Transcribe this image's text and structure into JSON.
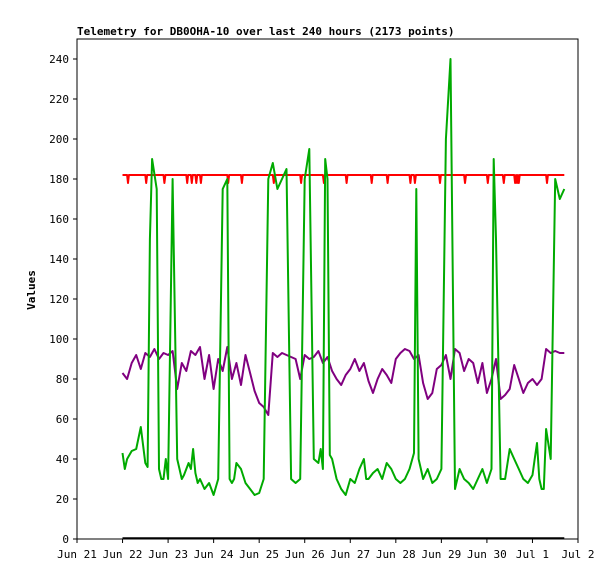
{
  "chart_data": {
    "type": "line",
    "title": "Telemetry for DB0OHA-10 over last 240 hours (2173 points)",
    "xlabel": "",
    "ylabel": "Values",
    "ylim": [
      0,
      250
    ],
    "yticks": [
      0,
      20,
      40,
      60,
      80,
      100,
      120,
      140,
      160,
      180,
      200,
      220,
      240
    ],
    "xlim": [
      0,
      11
    ],
    "xticks": [
      {
        "x": 0,
        "label": "Jun 21"
      },
      {
        "x": 1,
        "label": "Jun 22"
      },
      {
        "x": 2,
        "label": "Jun 23"
      },
      {
        "x": 3,
        "label": "Jun 24"
      },
      {
        "x": 4,
        "label": "Jun 25"
      },
      {
        "x": 5,
        "label": "Jun 26"
      },
      {
        "x": 6,
        "label": "Jun 27"
      },
      {
        "x": 7,
        "label": "Jun 28"
      },
      {
        "x": 8,
        "label": "Jun 29"
      },
      {
        "x": 9,
        "label": "Jun 30"
      },
      {
        "x": 10,
        "label": "Jul 1"
      },
      {
        "x": 11,
        "label": "Jul 2"
      }
    ],
    "grid": false,
    "series": [
      {
        "color": "#ff0000",
        "x": [
          1.0,
          1.1,
          1.12,
          1.14,
          1.5,
          1.52,
          1.54,
          1.9,
          1.92,
          1.94,
          2.4,
          2.42,
          2.44,
          2.5,
          2.52,
          2.54,
          2.6,
          2.62,
          2.64,
          2.7,
          2.72,
          2.74,
          3.3,
          3.32,
          3.34,
          3.6,
          3.62,
          3.64,
          4.3,
          4.32,
          4.34,
          4.9,
          4.92,
          4.94,
          5.4,
          5.42,
          5.44,
          5.9,
          5.92,
          5.94,
          6.45,
          6.47,
          6.49,
          6.8,
          6.82,
          6.84,
          7.3,
          7.32,
          7.34,
          7.4,
          7.42,
          7.44,
          7.95,
          7.97,
          7.99,
          8.5,
          8.52,
          8.54,
          9.0,
          9.02,
          9.04,
          9.35,
          9.37,
          9.39,
          9.6,
          9.62,
          9.64,
          9.66,
          9.68,
          9.7,
          9.72,
          10.3,
          10.32,
          10.34,
          10.7
        ],
        "y": [
          182,
          182,
          178,
          182,
          182,
          178,
          182,
          182,
          178,
          182,
          182,
          178,
          182,
          182,
          178,
          182,
          182,
          178,
          182,
          182,
          178,
          182,
          182,
          178,
          182,
          182,
          178,
          182,
          182,
          178,
          182,
          182,
          178,
          182,
          182,
          178,
          182,
          182,
          178,
          182,
          182,
          178,
          182,
          182,
          178,
          182,
          182,
          178,
          182,
          182,
          178,
          182,
          182,
          178,
          182,
          182,
          178,
          182,
          182,
          178,
          182,
          182,
          178,
          182,
          182,
          178,
          182,
          178,
          182,
          178,
          182,
          182,
          178,
          182,
          182
        ]
      },
      {
        "color": "#800080",
        "x": [
          1.0,
          1.1,
          1.2,
          1.3,
          1.4,
          1.5,
          1.6,
          1.7,
          1.8,
          1.9,
          2.0,
          2.1,
          2.2,
          2.3,
          2.4,
          2.5,
          2.6,
          2.7,
          2.8,
          2.9,
          3.0,
          3.1,
          3.2,
          3.3,
          3.4,
          3.5,
          3.6,
          3.7,
          3.8,
          3.9,
          4.0,
          4.1,
          4.2,
          4.3,
          4.4,
          4.5,
          4.6,
          4.7,
          4.8,
          4.9,
          5.0,
          5.1,
          5.2,
          5.3,
          5.4,
          5.5,
          5.6,
          5.7,
          5.8,
          5.9,
          6.0,
          6.1,
          6.2,
          6.3,
          6.4,
          6.5,
          6.6,
          6.7,
          6.8,
          6.9,
          7.0,
          7.1,
          7.2,
          7.3,
          7.4,
          7.5,
          7.6,
          7.7,
          7.8,
          7.9,
          8.0,
          8.1,
          8.2,
          8.3,
          8.4,
          8.5,
          8.6,
          8.7,
          8.8,
          8.9,
          9.0,
          9.1,
          9.2,
          9.3,
          9.4,
          9.5,
          9.6,
          9.7,
          9.8,
          9.9,
          10.0,
          10.1,
          10.2,
          10.3,
          10.4,
          10.5,
          10.6,
          10.7
        ],
        "y": [
          83,
          80,
          88,
          92,
          85,
          93,
          91,
          95,
          90,
          93,
          92,
          94,
          75,
          88,
          84,
          94,
          92,
          96,
          80,
          92,
          75,
          90,
          84,
          96,
          80,
          88,
          77,
          92,
          83,
          74,
          68,
          66,
          62,
          93,
          91,
          93,
          92,
          91,
          90,
          80,
          92,
          90,
          91,
          94,
          88,
          91,
          84,
          80,
          77,
          82,
          85,
          90,
          84,
          88,
          79,
          73,
          80,
          85,
          82,
          78,
          90,
          93,
          95,
          94,
          90,
          92,
          78,
          70,
          73,
          85,
          87,
          92,
          80,
          95,
          93,
          84,
          90,
          88,
          78,
          88,
          73,
          80,
          90,
          70,
          72,
          75,
          87,
          80,
          73,
          78,
          80,
          77,
          80,
          95,
          93,
          94,
          93,
          93
        ]
      },
      {
        "color": "#00aa00",
        "x": [
          1.0,
          1.05,
          1.1,
          1.2,
          1.3,
          1.4,
          1.5,
          1.55,
          1.6,
          1.65,
          1.75,
          1.8,
          1.85,
          1.9,
          1.95,
          2.0,
          2.1,
          2.2,
          2.3,
          2.35,
          2.45,
          2.5,
          2.55,
          2.6,
          2.65,
          2.7,
          2.8,
          2.9,
          3.0,
          3.1,
          3.2,
          3.3,
          3.35,
          3.4,
          3.45,
          3.5,
          3.6,
          3.7,
          3.8,
          3.9,
          4.0,
          4.1,
          4.2,
          4.3,
          4.4,
          4.5,
          4.6,
          4.7,
          4.8,
          4.9,
          5.0,
          5.1,
          5.2,
          5.3,
          5.35,
          5.4,
          5.45,
          5.5,
          5.55,
          5.6,
          5.7,
          5.8,
          5.9,
          6.0,
          6.1,
          6.2,
          6.3,
          6.35,
          6.4,
          6.5,
          6.6,
          6.7,
          6.8,
          6.9,
          7.0,
          7.1,
          7.2,
          7.3,
          7.4,
          7.45,
          7.5,
          7.55,
          7.6,
          7.7,
          7.8,
          7.9,
          8.0,
          8.1,
          8.2,
          8.3,
          8.35,
          8.4,
          8.5,
          8.6,
          8.7,
          8.8,
          8.9,
          9.0,
          9.1,
          9.15,
          9.2,
          9.3,
          9.4,
          9.5,
          9.6,
          9.7,
          9.8,
          9.9,
          10.0,
          10.05,
          10.1,
          10.15,
          10.2,
          10.25,
          10.3,
          10.4,
          10.5,
          10.6,
          10.7
        ],
        "y": [
          43,
          35,
          40,
          44,
          45,
          56,
          38,
          36,
          150,
          190,
          175,
          35,
          30,
          30,
          40,
          30,
          180,
          40,
          30,
          32,
          38,
          35,
          45,
          33,
          28,
          30,
          25,
          28,
          22,
          30,
          175,
          180,
          30,
          28,
          30,
          38,
          35,
          28,
          25,
          22,
          23,
          30,
          180,
          188,
          175,
          180,
          185,
          30,
          28,
          30,
          180,
          195,
          40,
          38,
          45,
          35,
          190,
          180,
          42,
          40,
          30,
          25,
          22,
          30,
          28,
          35,
          40,
          30,
          30,
          33,
          35,
          30,
          38,
          35,
          30,
          28,
          30,
          35,
          43,
          175,
          40,
          35,
          30,
          35,
          28,
          30,
          35,
          200,
          240,
          25,
          30,
          35,
          30,
          28,
          25,
          30,
          35,
          28,
          35,
          190,
          150,
          30,
          30,
          45,
          40,
          35,
          30,
          28,
          32,
          40,
          48,
          30,
          25,
          25,
          55,
          40,
          180,
          170,
          175
        ]
      },
      {
        "color": "#000000",
        "x": [
          1.0,
          10.7
        ],
        "y": [
          0.4,
          0.4
        ]
      }
    ]
  }
}
